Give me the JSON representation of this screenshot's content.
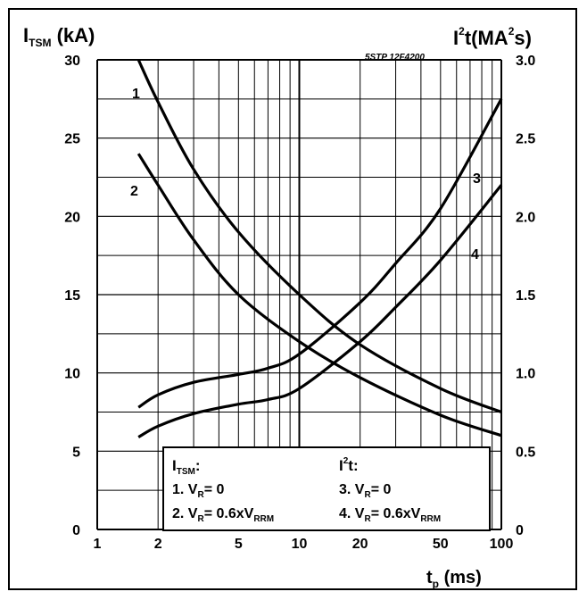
{
  "chart_data": {
    "type": "line",
    "part_id": "5STP 12F4200",
    "left_axis": {
      "base": "I",
      "sub": "TSM",
      "unit": " (kA)",
      "ylim": [
        0,
        30
      ],
      "ticks": [
        "0",
        "5",
        "10",
        "15",
        "20",
        "25",
        "30"
      ]
    },
    "right_axis": {
      "base": "I",
      "sup1": "2",
      "mid": "t(MA",
      "sup2": "2",
      "tail": "s)",
      "ylim": [
        0,
        3.0
      ],
      "ticks": [
        "0",
        "0.5",
        "1.0",
        "1.5",
        "2.0",
        "2.5",
        "3.0"
      ]
    },
    "x_axis": {
      "base": "t",
      "sub": "p",
      "unit": " (ms)",
      "scale": "log",
      "xlim": [
        1,
        100
      ],
      "ticks": [
        "1",
        "2",
        "5",
        "10",
        "20",
        "50",
        "100"
      ]
    },
    "grid": true,
    "series": [
      {
        "name": "1",
        "axis": "left",
        "x": [
          1.6,
          2,
          3,
          5,
          10,
          20,
          50,
          100
        ],
        "y": [
          30,
          27.3,
          23,
          19,
          15,
          11.8,
          9,
          7.5
        ]
      },
      {
        "name": "2",
        "axis": "left",
        "x": [
          1.6,
          2,
          3,
          5,
          10,
          20,
          50,
          100
        ],
        "y": [
          24,
          22,
          18.5,
          15,
          12,
          9.7,
          7.3,
          6
        ]
      },
      {
        "name": "3",
        "axis": "right",
        "x": [
          1.6,
          2,
          3,
          5,
          7,
          10,
          20,
          30,
          50,
          100
        ],
        "y": [
          0.78,
          0.86,
          0.94,
          0.99,
          1.03,
          1.12,
          1.45,
          1.7,
          2.05,
          2.75
        ]
      },
      {
        "name": "4",
        "axis": "right",
        "x": [
          1.6,
          2,
          3,
          5,
          7,
          10,
          20,
          30,
          50,
          100
        ],
        "y": [
          0.59,
          0.66,
          0.74,
          0.8,
          0.83,
          0.9,
          1.2,
          1.42,
          1.72,
          2.2
        ]
      }
    ],
    "legend": {
      "left_header": {
        "base": "I",
        "sub": "TSM",
        "tail": ":"
      },
      "left_items": [
        {
          "prefix": "1. V",
          "sub": "R",
          "tail": "= 0"
        },
        {
          "prefix": "2. V",
          "sub": "R",
          "tail": "= 0.6xV",
          "sub2": "RRM"
        }
      ],
      "right_header": {
        "base": "I",
        "sup": "2",
        "tail": "t:"
      },
      "right_items": [
        {
          "prefix": "3. V",
          "sub": "R",
          "tail": "= 0"
        },
        {
          "prefix": "4. V",
          "sub": "R",
          "tail": "= 0.6xV",
          "sub2": "RRM"
        }
      ]
    }
  }
}
